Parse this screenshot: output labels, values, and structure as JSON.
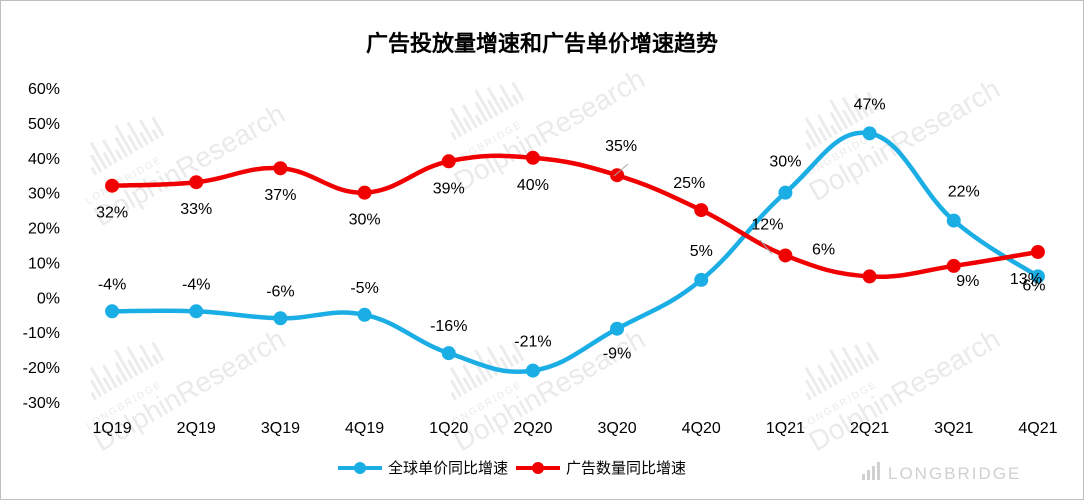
{
  "chart_data": {
    "type": "line",
    "title": "广告投放量增速和广告单价增速趋势",
    "categories": [
      "1Q19",
      "2Q19",
      "3Q19",
      "4Q19",
      "1Q20",
      "2Q20",
      "3Q20",
      "4Q20",
      "1Q21",
      "2Q21",
      "3Q21",
      "4Q21"
    ],
    "ylim": [
      -30,
      60
    ],
    "yticks": [
      "60%",
      "50%",
      "40%",
      "30%",
      "20%",
      "10%",
      "0%",
      "-10%",
      "-20%",
      "-30%"
    ],
    "ytick_values": [
      60,
      50,
      40,
      30,
      20,
      10,
      0,
      -10,
      -20,
      -30
    ],
    "grid": false,
    "legend_position": "bottom",
    "series": [
      {
        "name": "全球单价同比增速",
        "color": "#1aaee5",
        "values": [
          -4,
          -4,
          -6,
          -5,
          -16,
          -21,
          -9,
          5,
          30,
          47,
          22,
          6
        ],
        "labels": [
          "-4%",
          "-4%",
          "-6%",
          "-5%",
          "-16%",
          "-21%",
          "-9%",
          "5%",
          "30%",
          "47%",
          "22%",
          "6%"
        ]
      },
      {
        "name": "广告数量同比增速",
        "color": "#f00000",
        "values": [
          32,
          33,
          37,
          30,
          39,
          40,
          35,
          25,
          12,
          6,
          9,
          13
        ],
        "labels": [
          "32%",
          "33%",
          "37%",
          "30%",
          "39%",
          "40%",
          "35%",
          "25%",
          "12%",
          "6%",
          "9%",
          "13%"
        ]
      }
    ]
  },
  "watermark": {
    "brand": "DolphinResearch",
    "sub": "LONGBRIDGE",
    "footer": "LONGBRIDGE"
  }
}
